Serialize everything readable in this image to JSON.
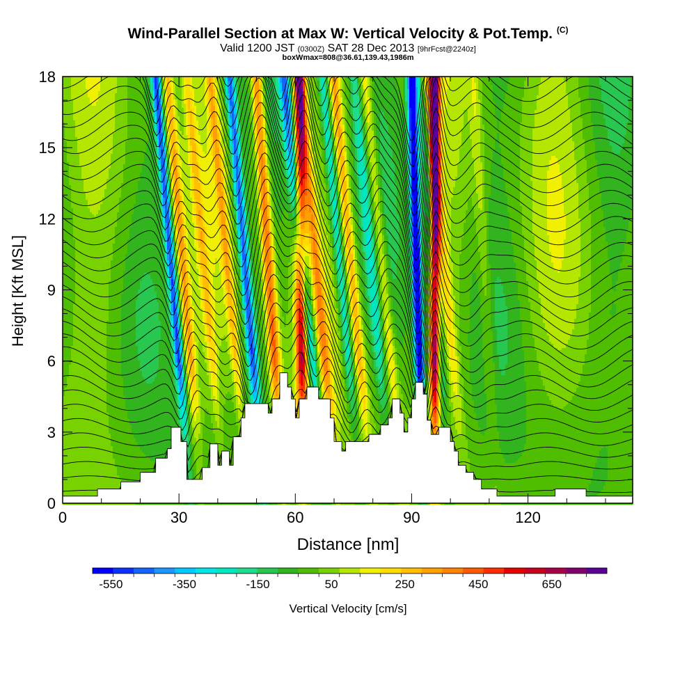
{
  "title": "Wind-Parallel Section at Max W: Vertical Velocity & Pot.Temp.",
  "copyright": "(C)",
  "subtitle_main_a": "Valid 1200 JST",
  "subtitle_small_a": "(0300Z)",
  "subtitle_main_b": "SAT 28 Dec 2013",
  "subtitle_small_b": "[9hrFcst@2240z]",
  "subtitle2": "boxWmax=808@36.61,139.43,1986m",
  "chart_data": {
    "type": "heatmap",
    "xlabel": "Distance [nm]",
    "ylabel": "Height [Kft MSL]",
    "xlim": [
      0,
      147
    ],
    "ylim": [
      0,
      18
    ],
    "xticks": [
      0,
      30,
      60,
      90,
      120
    ],
    "yticks": [
      0,
      3,
      6,
      9,
      12,
      15,
      18
    ],
    "colorbar": {
      "label": "Vertical Velocity [cm/s]",
      "min": -600,
      "max": 800,
      "step": 50,
      "tick_labels": [
        "-550",
        "-350",
        "-150",
        "50",
        "250",
        "450",
        "650"
      ],
      "tick_values": [
        -550,
        -350,
        -150,
        50,
        250,
        450,
        650
      ],
      "colors": [
        "#0000ff",
        "#0a32ff",
        "#1464ff",
        "#1e96ff",
        "#00c8ff",
        "#00e6e6",
        "#00e6be",
        "#1edc8c",
        "#28c850",
        "#32b41e",
        "#50be00",
        "#78d200",
        "#b4e600",
        "#f0f000",
        "#ffdc00",
        "#ffbe00",
        "#ffa000",
        "#ff8200",
        "#ff5a00",
        "#ff2d00",
        "#e60000",
        "#c8001e",
        "#aa0046",
        "#82006e",
        "#5a0096"
      ]
    },
    "updrafts": [
      {
        "x_base": 36,
        "lean": -9,
        "w_max": 250,
        "width": 1.4
      },
      {
        "x_base": 42,
        "lean": -10,
        "w_max": 150,
        "width": 1.2
      },
      {
        "x_base": 48,
        "lean": -10,
        "w_max": 200,
        "width": 1.2
      },
      {
        "x_base": 57,
        "lean": -7,
        "w_max": 400,
        "width": 1.6
      },
      {
        "x_base": 62,
        "lean": -1,
        "w_max": 520,
        "width": 1.5
      },
      {
        "x_base": 71,
        "lean": -10,
        "w_max": 250,
        "width": 1.4
      },
      {
        "x_base": 80,
        "lean": -10,
        "w_max": 250,
        "width": 1.4
      },
      {
        "x_base": 88,
        "lean": -10,
        "w_max": 200,
        "width": 1.4
      },
      {
        "x_base": 96,
        "lean": 0,
        "w_max": 700,
        "width": 1.2
      },
      {
        "x_base": 104,
        "lean": -10,
        "w_max": 150,
        "width": 1.6
      },
      {
        "x_base": 112,
        "lean": -6,
        "w_max": 100,
        "width": 1.6
      }
    ],
    "downdrafts": [
      {
        "x_base": 33,
        "lean": -9,
        "w_min": -420,
        "width": 1.2
      },
      {
        "x_base": 52,
        "lean": -9,
        "w_min": -420,
        "width": 1.4
      },
      {
        "x_base": 68,
        "lean": -11,
        "w_min": -350,
        "width": 1.5
      },
      {
        "x_base": 77,
        "lean": -10,
        "w_min": -250,
        "width": 1.4
      },
      {
        "x_base": 85,
        "lean": -10,
        "w_min": -150,
        "width": 1.4
      },
      {
        "x_base": 93,
        "lean": -3,
        "w_min": -600,
        "width": 1.3
      },
      {
        "x_base": 100,
        "lean": -8,
        "w_min": -200,
        "width": 1.5
      }
    ],
    "terrain": [
      [
        0,
        0.3
      ],
      [
        9,
        0.3
      ],
      [
        9,
        0.6
      ],
      [
        15,
        0.6
      ],
      [
        15,
        0.9
      ],
      [
        20,
        0.9
      ],
      [
        20,
        1.3
      ],
      [
        24,
        1.3
      ],
      [
        24,
        1.9
      ],
      [
        27,
        1.9
      ],
      [
        27,
        2.3
      ],
      [
        28,
        2.3
      ],
      [
        28,
        3.2
      ],
      [
        30.5,
        3.2
      ],
      [
        30.5,
        2.6
      ],
      [
        32,
        2.6
      ],
      [
        32,
        1.0
      ],
      [
        36,
        1.0
      ],
      [
        36,
        1.5
      ],
      [
        38,
        1.5
      ],
      [
        38,
        2.5
      ],
      [
        40,
        2.5
      ],
      [
        40,
        1.6
      ],
      [
        41,
        1.6
      ],
      [
        41,
        2.2
      ],
      [
        43,
        2.2
      ],
      [
        43,
        1.6
      ],
      [
        44,
        1.6
      ],
      [
        44,
        2.8
      ],
      [
        46,
        2.8
      ],
      [
        46,
        3.6
      ],
      [
        47,
        3.6
      ],
      [
        47,
        4.2
      ],
      [
        53,
        4.2
      ],
      [
        53,
        3.8
      ],
      [
        54,
        3.8
      ],
      [
        54,
        4.4
      ],
      [
        56,
        4.4
      ],
      [
        56,
        5.5
      ],
      [
        58,
        5.5
      ],
      [
        58,
        4.9
      ],
      [
        59,
        4.9
      ],
      [
        59,
        4.4
      ],
      [
        60,
        4.4
      ],
      [
        60,
        3.6
      ],
      [
        61,
        3.6
      ],
      [
        61,
        4.4
      ],
      [
        63,
        4.4
      ],
      [
        63,
        4.9
      ],
      [
        66,
        4.9
      ],
      [
        66,
        4.4
      ],
      [
        69,
        4.4
      ],
      [
        69,
        3.6
      ],
      [
        70,
        3.6
      ],
      [
        70,
        2.6
      ],
      [
        72,
        2.6
      ],
      [
        72,
        2.2
      ],
      [
        73,
        2.2
      ],
      [
        73,
        2.6
      ],
      [
        79,
        2.6
      ],
      [
        79,
        2.9
      ],
      [
        82,
        2.9
      ],
      [
        82,
        3.3
      ],
      [
        84,
        3.3
      ],
      [
        84,
        3.6
      ],
      [
        85,
        3.6
      ],
      [
        85,
        4.4
      ],
      [
        87,
        4.4
      ],
      [
        87,
        3.8
      ],
      [
        88,
        3.8
      ],
      [
        88,
        3.0
      ],
      [
        89,
        3.0
      ],
      [
        89,
        3.6
      ],
      [
        90,
        3.6
      ],
      [
        90,
        4.4
      ],
      [
        91,
        4.4
      ],
      [
        91,
        5.1
      ],
      [
        93,
        5.1
      ],
      [
        93,
        4.6
      ],
      [
        94,
        4.6
      ],
      [
        94,
        3.5
      ],
      [
        95,
        3.5
      ],
      [
        95,
        2.9
      ],
      [
        97,
        2.9
      ],
      [
        97,
        3.2
      ],
      [
        100,
        3.2
      ],
      [
        100,
        2.6
      ],
      [
        101,
        2.6
      ],
      [
        101,
        2.2
      ],
      [
        102,
        2.2
      ],
      [
        102,
        1.6
      ],
      [
        104,
        1.6
      ],
      [
        104,
        1.3
      ],
      [
        106,
        1.3
      ],
      [
        106,
        1.0
      ],
      [
        108,
        1.0
      ],
      [
        108,
        0.6
      ],
      [
        112,
        0.6
      ],
      [
        112,
        0.3
      ],
      [
        127,
        0.3
      ],
      [
        127,
        0.6
      ],
      [
        135,
        0.6
      ],
      [
        135,
        0.3
      ],
      [
        147,
        0.3
      ]
    ]
  }
}
